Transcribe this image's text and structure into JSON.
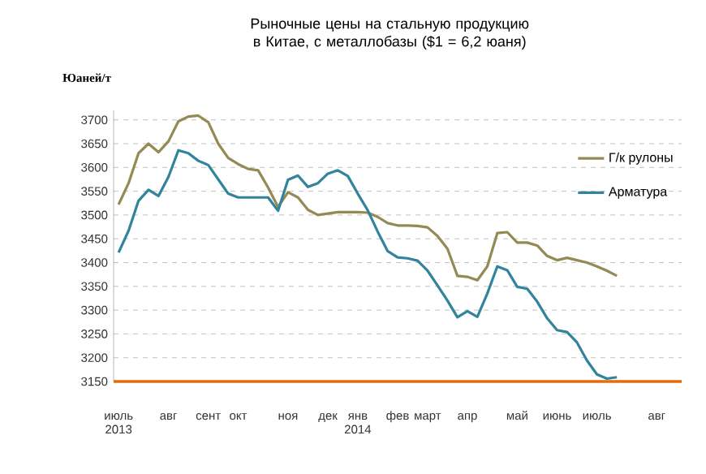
{
  "chart_data": {
    "type": "line",
    "title": "Рыночные цены на стальную продукцию в Китае, с металлобазы ($1 = 6,2 юаня)",
    "ylabel": "Юаней/т",
    "categories": [
      "июль 2013",
      null,
      null,
      null,
      null,
      "авг",
      null,
      null,
      null,
      "сент",
      null,
      null,
      "окт",
      null,
      null,
      null,
      null,
      "ноя",
      null,
      null,
      null,
      "дек",
      null,
      null,
      "янв 2014",
      null,
      null,
      null,
      "фев",
      null,
      null,
      "март",
      null,
      null,
      null,
      "апр",
      null,
      null,
      null,
      null,
      "май",
      null,
      null,
      null,
      "июнь",
      null,
      null,
      null,
      "июль",
      null,
      null,
      null,
      null,
      null,
      "авг",
      null,
      null
    ],
    "ylim": [
      3150,
      3720
    ],
    "yticks": [
      3150,
      3200,
      3250,
      3300,
      3350,
      3400,
      3450,
      3500,
      3550,
      3600,
      3650,
      3700
    ],
    "grid": "y",
    "legend": "right",
    "marker": "none",
    "line_style": "solid",
    "series": [
      {
        "name": "Г/к рулоны",
        "color": "#948a54",
        "values": [
          3522,
          3567,
          3630,
          3650,
          3632,
          3655,
          3697,
          3707,
          3709,
          3695,
          3650,
          3620,
          3607,
          3597,
          3594,
          3558,
          3517,
          3548,
          3537,
          3511,
          3500,
          3503,
          3506,
          3506,
          3506,
          3505,
          3496,
          3483,
          3478,
          3478,
          3477,
          3474,
          3456,
          3429,
          3372,
          3370,
          3363,
          3392,
          3462,
          3464,
          3442,
          3442,
          3436,
          3414,
          3405,
          3410,
          3405,
          3400,
          3392,
          3383,
          3372,
          null,
          null,
          null,
          null,
          null,
          null
        ]
      },
      {
        "name": "Арматура",
        "color": "#31849b",
        "values": [
          3421,
          3467,
          3530,
          3553,
          3540,
          3580,
          3636,
          3630,
          3614,
          3605,
          3575,
          3545,
          3537,
          3537,
          3537,
          3537,
          3509,
          3574,
          3583,
          3559,
          3567,
          3587,
          3594,
          3582,
          3545,
          3510,
          3465,
          3424,
          3411,
          3409,
          3404,
          3383,
          3352,
          3320,
          3285,
          3298,
          3286,
          3335,
          3392,
          3384,
          3349,
          3345,
          3318,
          3283,
          3258,
          3254,
          3232,
          3194,
          3165,
          3156,
          3159,
          null,
          null,
          null,
          null,
          null,
          null
        ]
      }
    ]
  }
}
